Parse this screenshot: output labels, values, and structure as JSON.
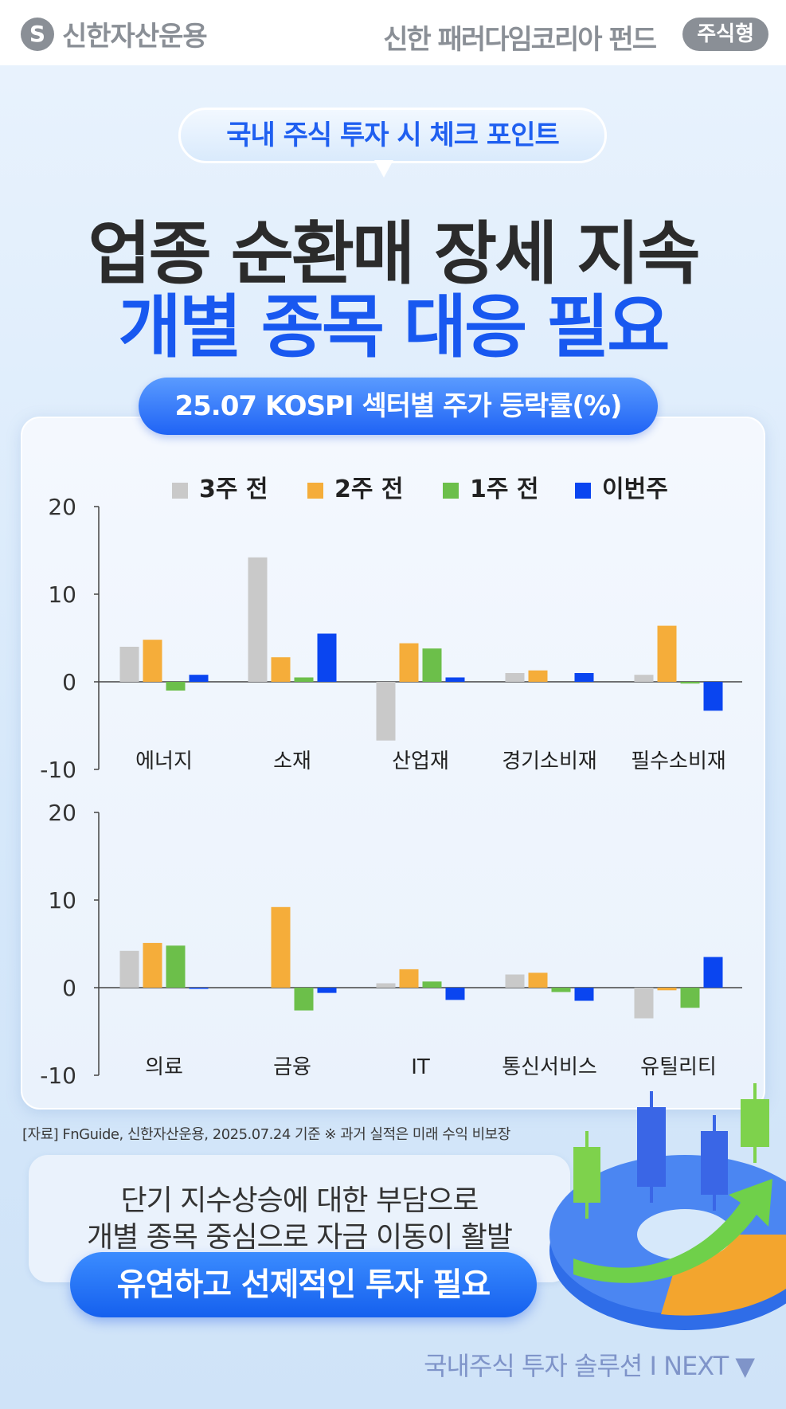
{
  "header": {
    "brand": "신한자산운용",
    "brand_mark": "S",
    "fund_name": "신한 패러다임코리아 펀드",
    "fund_tag": "주식형"
  },
  "hero": {
    "bubble": "국내 주식 투자 시 체크 포인트",
    "headline_1": "업종 순환매 장세 지속",
    "headline_2": "개별 종목 대응 필요"
  },
  "chart_title": "25.07 KOSPI 섹터별 주가 등락률(%)",
  "chart_data": [
    {
      "type": "bar",
      "categories": [
        "에너지",
        "소재",
        "산업재",
        "경기소비재",
        "필수소비재"
      ],
      "series": [
        {
          "name": "3주 전",
          "values": [
            4.0,
            14.2,
            -6.7,
            1.0,
            0.8
          ],
          "color": "#c9c9c9"
        },
        {
          "name": "2주 전",
          "values": [
            4.8,
            2.8,
            4.4,
            1.3,
            6.4
          ],
          "color": "#f5ad3a"
        },
        {
          "name": "1주 전",
          "values": [
            -1.0,
            0.5,
            3.8,
            0.0,
            -0.2
          ],
          "color": "#6cbf4a"
        },
        {
          "name": "이번주",
          "values": [
            0.8,
            5.5,
            0.5,
            1.0,
            -3.3
          ],
          "color": "#0a45f0"
        }
      ],
      "ylim": [
        -10,
        20
      ],
      "yticks": [
        -10,
        0,
        10,
        20
      ]
    },
    {
      "type": "bar",
      "categories": [
        "의료",
        "금융",
        "IT",
        "통신서비스",
        "유틸리티"
      ],
      "series": [
        {
          "name": "3주 전",
          "values": [
            4.2,
            0.0,
            0.5,
            1.5,
            -3.5
          ],
          "color": "#c9c9c9"
        },
        {
          "name": "2주 전",
          "values": [
            5.1,
            9.2,
            2.1,
            1.7,
            -0.3
          ],
          "color": "#f5ad3a"
        },
        {
          "name": "1주 전",
          "values": [
            4.8,
            -2.6,
            0.7,
            -0.5,
            -2.3
          ],
          "color": "#6cbf4a"
        },
        {
          "name": "이번주",
          "values": [
            -0.1,
            -0.6,
            -1.4,
            -1.5,
            3.5
          ],
          "color": "#0a45f0"
        }
      ],
      "ylim": [
        -10,
        20
      ],
      "yticks": [
        -10,
        0,
        10,
        20
      ]
    }
  ],
  "source_note": "[자료] FnGuide, 신한자산운용, 2025.07.24 기준   ※ 과거 실적은 미래 수익 비보장",
  "message": {
    "line_1": "단기 지수상승에 대한 부담으로",
    "line_2": "개별 종목 중심으로 자금 이동이 활발",
    "cta": "유연하고 선제적인 투자 필요"
  },
  "footer": "국내주식 투자 솔루션  I  NEXT ▼"
}
